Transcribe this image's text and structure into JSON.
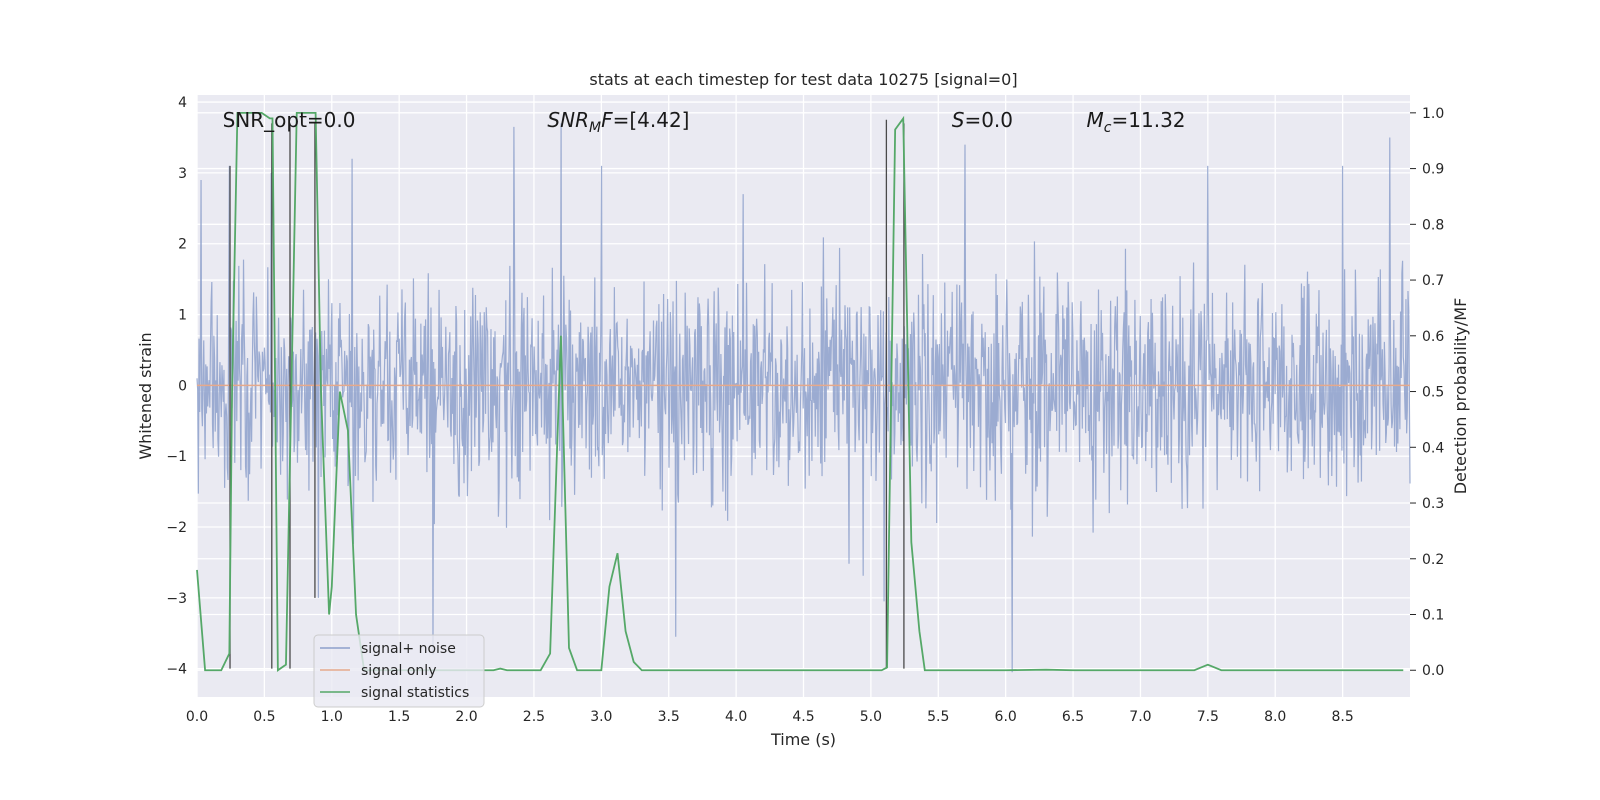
{
  "chart_data": {
    "type": "line",
    "title": "stats at each timestep for test data 10275 [signal=0]",
    "xlabel": "Time (s)",
    "ylabel": "Whitened strain",
    "ylabel_right": "Detection probability/MF",
    "xlim": [
      0,
      9.0
    ],
    "ylim": [
      -4.4,
      4.1
    ],
    "ylim_right": [
      -0.048,
      1.032
    ],
    "x_ticks": [
      0.0,
      0.5,
      1.0,
      1.5,
      2.0,
      2.5,
      3.0,
      3.5,
      4.0,
      4.5,
      5.0,
      5.5,
      6.0,
      6.5,
      7.0,
      7.5,
      8.0,
      8.5
    ],
    "x_tick_labels": [
      "0.0",
      "0.5",
      "1.0",
      "1.5",
      "2.0",
      "2.5",
      "3.0",
      "3.5",
      "4.0",
      "4.5",
      "5.0",
      "5.5",
      "6.0",
      "6.5",
      "7.0",
      "7.5",
      "8.0",
      "8.5"
    ],
    "y_ticks": [
      -4,
      -3,
      -2,
      -1,
      0,
      1,
      2,
      3,
      4
    ],
    "y_tick_labels": [
      "−4",
      "−3",
      "−2",
      "−1",
      "0",
      "1",
      "2",
      "3",
      "4"
    ],
    "y_ticks_right": [
      0.0,
      0.1,
      0.2,
      0.3,
      0.4,
      0.5,
      0.6,
      0.7,
      0.8,
      0.9,
      1.0
    ],
    "y_tick_labels_right": [
      "0.0",
      "0.1",
      "0.2",
      "0.3",
      "0.4",
      "0.5",
      "0.6",
      "0.7",
      "0.8",
      "0.9",
      "1.0"
    ],
    "grid": true,
    "legend_position": "lower-left",
    "annotations": [
      {
        "id": "snr-opt",
        "x": 0.19,
        "y": 3.75,
        "text": "SNR_opt=0.0"
      },
      {
        "id": "snr-mf",
        "x": 2.6,
        "y": 3.75,
        "text_prefix": "SNR",
        "text_sub": "M",
        "text_mid": "F",
        "text_suffix": "=[4.42]"
      },
      {
        "id": "s-stat",
        "x": 5.6,
        "y": 3.75,
        "text_prefix": "S",
        "text_suffix": "=0.0"
      },
      {
        "id": "mc",
        "x": 6.6,
        "y": 3.75,
        "text_prefix": "M",
        "text_sub": "c",
        "text_suffix": "=11.32"
      }
    ],
    "series": [
      {
        "name": "signal+ noise",
        "color": "#8da0cb",
        "kind": "noise",
        "samples": 1800,
        "envelope_abs": 2.0,
        "peaks": [
          [
            0.03,
            2.9
          ],
          [
            0.24,
            3.1
          ],
          [
            0.55,
            3.0
          ],
          [
            0.9,
            -3.0
          ],
          [
            1.15,
            3.2
          ],
          [
            1.75,
            -3.8
          ],
          [
            2.35,
            3.65
          ],
          [
            2.7,
            3.7
          ],
          [
            3.0,
            3.1
          ],
          [
            3.55,
            -3.55
          ],
          [
            4.05,
            2.7
          ],
          [
            5.1,
            -3.05
          ],
          [
            5.7,
            3.4
          ],
          [
            6.05,
            -4.05
          ],
          [
            7.5,
            3.1
          ],
          [
            8.5,
            3.1
          ],
          [
            8.85,
            3.5
          ]
        ]
      },
      {
        "name": "signal only",
        "color": "#e5a98c",
        "x": [
          0.0,
          9.0
        ],
        "y": [
          0.0,
          0.0
        ]
      },
      {
        "name": "signal statistics",
        "color": "#55a868",
        "axis": "right",
        "x": [
          0.0,
          0.06,
          0.12,
          0.18,
          0.24,
          0.26,
          0.3,
          0.36,
          0.42,
          0.48,
          0.54,
          0.56,
          0.6,
          0.66,
          0.7,
          0.74,
          0.78,
          0.84,
          0.88,
          0.92,
          0.98,
          1.0,
          1.06,
          1.12,
          1.18,
          1.24,
          1.3,
          1.5,
          1.8,
          2.1,
          2.2,
          2.25,
          2.3,
          2.4,
          2.5,
          2.55,
          2.62,
          2.7,
          2.76,
          2.82,
          2.9,
          3.0,
          3.06,
          3.12,
          3.18,
          3.24,
          3.3,
          3.5,
          4.0,
          4.5,
          5.0,
          5.08,
          5.12,
          5.18,
          5.24,
          5.3,
          5.36,
          5.4,
          5.5,
          6.0,
          6.3,
          6.5,
          7.0,
          7.4,
          7.45,
          7.5,
          7.55,
          7.6,
          8.0,
          8.5,
          8.95
        ],
        "y": [
          0.18,
          0.0,
          0.0,
          0.0,
          0.03,
          0.5,
          1.0,
          1.0,
          1.0,
          1.0,
          0.99,
          0.99,
          0.0,
          0.01,
          0.5,
          1.0,
          1.0,
          1.0,
          1.0,
          0.5,
          0.1,
          0.15,
          0.5,
          0.43,
          0.1,
          0.0,
          0.0,
          0.0,
          0.0,
          0.0,
          0.0,
          0.003,
          0.0,
          0.0,
          0.0,
          0.0,
          0.03,
          0.6,
          0.04,
          0.0,
          0.0,
          0.0,
          0.15,
          0.21,
          0.07,
          0.015,
          0.0,
          0.0,
          0.0,
          0.0,
          0.0,
          0.0,
          0.005,
          0.97,
          0.99,
          0.23,
          0.07,
          0.0,
          0.0,
          0.0,
          0.001,
          0.0,
          0.0,
          0.0,
          0.005,
          0.01,
          0.005,
          0.0,
          0.0,
          0.0,
          0.0
        ]
      }
    ],
    "vertical_markers": [
      {
        "x": 0.245,
        "y_top": 3.1,
        "y_bottom": -4.0
      },
      {
        "x": 0.555,
        "y_top": 3.7,
        "y_bottom": -4.0
      },
      {
        "x": 0.69,
        "y_top": 3.7,
        "y_bottom": -4.0
      },
      {
        "x": 0.875,
        "y_top": 3.7,
        "y_bottom": -3.0
      },
      {
        "x": 5.115,
        "y_top": 3.75,
        "y_bottom": -4.0
      },
      {
        "x": 5.245,
        "y_top": 3.7,
        "y_bottom": -4.0
      }
    ]
  }
}
